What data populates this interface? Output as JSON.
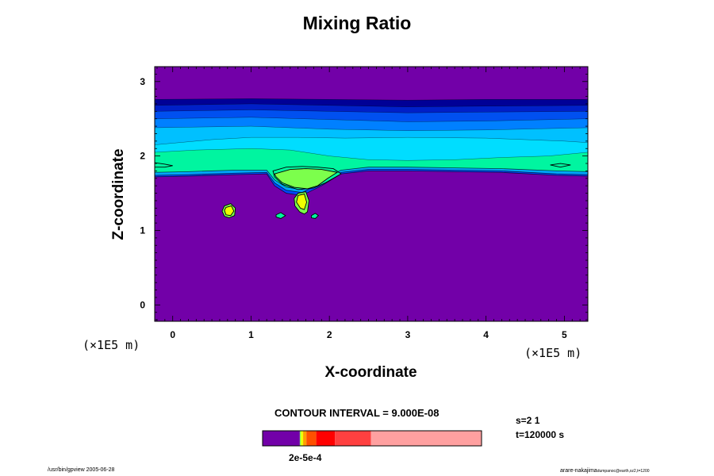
{
  "chart_data": {
    "type": "contour",
    "title": "Mixing Ratio",
    "xlabel": "X-coordinate",
    "ylabel": "Z-coordinate",
    "x_unit": "(×1E5 m)",
    "y_unit": "(×1E5 m)",
    "x_ticks": [
      "0",
      "1",
      "2",
      "3",
      "4",
      "5"
    ],
    "y_ticks": [
      "0",
      "1",
      "2",
      "3"
    ],
    "xlim": [
      -0.23,
      5.3
    ],
    "ylim": [
      -0.22,
      3.2
    ],
    "contour_interval": "CONTOUR INTERVAL = 9.000E-08",
    "colorbar_label": "2e-5e-4",
    "s_label": "s=2 1",
    "t_label": "t=120000 s",
    "bands": [
      {
        "color": "#7200a8",
        "top": [
          [
            -0.23,
            1.72
          ],
          [
            0.2,
            1.73
          ],
          [
            0.8,
            1.75
          ],
          [
            1.2,
            1.76
          ],
          [
            1.3,
            1.6
          ],
          [
            1.45,
            1.5
          ],
          [
            1.65,
            1.47
          ],
          [
            1.9,
            1.6
          ],
          [
            2.15,
            1.76
          ],
          [
            2.5,
            1.8
          ],
          [
            3.0,
            1.8
          ],
          [
            3.6,
            1.79
          ],
          [
            4.2,
            1.78
          ],
          [
            4.9,
            1.74
          ],
          [
            5.3,
            1.73
          ]
        ]
      },
      {
        "color": "#0047ff",
        "top": [
          [
            -0.23,
            1.74
          ],
          [
            0.2,
            1.75
          ],
          [
            0.8,
            1.77
          ],
          [
            1.2,
            1.78
          ],
          [
            1.3,
            1.64
          ],
          [
            1.45,
            1.54
          ],
          [
            1.65,
            1.51
          ],
          [
            1.9,
            1.64
          ],
          [
            2.15,
            1.78
          ],
          [
            2.5,
            1.82
          ],
          [
            3.0,
            1.82
          ],
          [
            3.6,
            1.81
          ],
          [
            4.2,
            1.8
          ],
          [
            4.9,
            1.76
          ],
          [
            5.3,
            1.75
          ]
        ]
      },
      {
        "color": "#00a6ff",
        "top": [
          [
            -0.23,
            1.78
          ],
          [
            0.2,
            1.79
          ],
          [
            0.8,
            1.81
          ],
          [
            1.2,
            1.81
          ],
          [
            1.3,
            1.68
          ],
          [
            1.45,
            1.58
          ],
          [
            1.65,
            1.55
          ],
          [
            1.9,
            1.68
          ],
          [
            2.15,
            1.81
          ],
          [
            2.5,
            1.85
          ],
          [
            3.0,
            1.85
          ],
          [
            3.6,
            1.84
          ],
          [
            4.2,
            1.83
          ],
          [
            4.9,
            1.8
          ],
          [
            5.3,
            1.79
          ]
        ]
      },
      {
        "color": "#00f5a0",
        "top": [
          [
            -0.23,
            2.05
          ],
          [
            0.3,
            2.08
          ],
          [
            1.0,
            2.1
          ],
          [
            1.5,
            2.08
          ],
          [
            2.0,
            2.0
          ],
          [
            2.5,
            1.95
          ],
          [
            3.0,
            1.94
          ],
          [
            3.6,
            1.95
          ],
          [
            4.2,
            1.98
          ],
          [
            4.8,
            2.0
          ],
          [
            5.3,
            2.05
          ]
        ]
      },
      {
        "color": "#00ddff",
        "top": [
          [
            -0.23,
            2.15
          ],
          [
            0.5,
            2.22
          ],
          [
            1.0,
            2.25
          ],
          [
            1.6,
            2.25
          ],
          [
            2.2,
            2.24
          ],
          [
            3.0,
            2.25
          ],
          [
            4.0,
            2.24
          ],
          [
            5.0,
            2.2
          ],
          [
            5.3,
            2.18
          ]
        ]
      },
      {
        "color": "#00c0ff",
        "top": [
          [
            -0.23,
            2.38
          ],
          [
            1.0,
            2.4
          ],
          [
            2.0,
            2.36
          ],
          [
            3.0,
            2.34
          ],
          [
            4.0,
            2.35
          ],
          [
            5.3,
            2.38
          ]
        ]
      },
      {
        "color": "#0080ff",
        "top": [
          [
            -0.23,
            2.5
          ],
          [
            1.0,
            2.52
          ],
          [
            2.0,
            2.49
          ],
          [
            3.0,
            2.46
          ],
          [
            4.0,
            2.47
          ],
          [
            5.3,
            2.5
          ]
        ]
      },
      {
        "color": "#0050f0",
        "top": [
          [
            -0.23,
            2.6
          ],
          [
            1.0,
            2.62
          ],
          [
            2.0,
            2.6
          ],
          [
            3.0,
            2.58
          ],
          [
            4.0,
            2.59
          ],
          [
            5.3,
            2.6
          ]
        ]
      },
      {
        "color": "#0020c8",
        "top": [
          [
            -0.23,
            2.68
          ],
          [
            1.0,
            2.7
          ],
          [
            2.0,
            2.68
          ],
          [
            3.0,
            2.66
          ],
          [
            4.0,
            2.67
          ],
          [
            5.3,
            2.68
          ]
        ]
      },
      {
        "color": "#000096",
        "top": [
          [
            -0.23,
            2.76
          ],
          [
            1.0,
            2.77
          ],
          [
            2.0,
            2.76
          ],
          [
            3.0,
            2.75
          ],
          [
            4.0,
            2.76
          ],
          [
            5.3,
            2.76
          ]
        ]
      },
      {
        "color": "#7200a8",
        "top": [
          [
            -0.23,
            3.2
          ],
          [
            5.3,
            3.2
          ]
        ]
      }
    ],
    "features": [
      {
        "color": "#00f5a0",
        "points": [
          [
            1.28,
            1.8
          ],
          [
            1.45,
            1.85
          ],
          [
            1.65,
            1.86
          ],
          [
            1.85,
            1.85
          ],
          [
            2.05,
            1.83
          ],
          [
            2.15,
            1.76
          ],
          [
            1.95,
            1.64
          ],
          [
            1.8,
            1.57
          ],
          [
            1.6,
            1.55
          ],
          [
            1.4,
            1.62
          ],
          [
            1.3,
            1.72
          ]
        ]
      },
      {
        "color": "#7cff4c",
        "points": [
          [
            1.3,
            1.76
          ],
          [
            1.5,
            1.82
          ],
          [
            1.7,
            1.83
          ],
          [
            1.9,
            1.82
          ],
          [
            2.1,
            1.78
          ],
          [
            1.98,
            1.7
          ],
          [
            1.85,
            1.6
          ],
          [
            1.72,
            1.56
          ],
          [
            1.55,
            1.58
          ],
          [
            1.4,
            1.64
          ],
          [
            1.32,
            1.72
          ]
        ]
      },
      {
        "color": "#7cff4c",
        "points": [
          [
            1.6,
            1.5
          ],
          [
            1.7,
            1.52
          ],
          [
            1.74,
            1.4
          ],
          [
            1.72,
            1.25
          ],
          [
            1.68,
            1.22
          ],
          [
            1.62,
            1.25
          ],
          [
            1.56,
            1.33
          ],
          [
            1.55,
            1.43
          ]
        ]
      },
      {
        "color": "#f0ff00",
        "points": [
          [
            1.6,
            1.47
          ],
          [
            1.68,
            1.49
          ],
          [
            1.71,
            1.38
          ],
          [
            1.68,
            1.28
          ],
          [
            1.63,
            1.3
          ],
          [
            1.58,
            1.38
          ]
        ]
      },
      {
        "color": "#7cff4c",
        "points": [
          [
            0.66,
            1.33
          ],
          [
            0.74,
            1.36
          ],
          [
            0.8,
            1.3
          ],
          [
            0.79,
            1.2
          ],
          [
            0.72,
            1.17
          ],
          [
            0.66,
            1.19
          ],
          [
            0.63,
            1.26
          ]
        ]
      },
      {
        "color": "#f0ff00",
        "points": [
          [
            0.68,
            1.31
          ],
          [
            0.75,
            1.33
          ],
          [
            0.78,
            1.26
          ],
          [
            0.74,
            1.2
          ],
          [
            0.68,
            1.21
          ],
          [
            0.66,
            1.27
          ]
        ]
      },
      {
        "color": "#00f5a0",
        "points": [
          [
            1.32,
            1.21
          ],
          [
            1.38,
            1.24
          ],
          [
            1.44,
            1.2
          ],
          [
            1.38,
            1.16
          ],
          [
            1.32,
            1.18
          ]
        ]
      },
      {
        "color": "#00f5a0",
        "points": [
          [
            1.77,
            1.2
          ],
          [
            1.82,
            1.23
          ],
          [
            1.86,
            1.2
          ],
          [
            1.82,
            1.16
          ],
          [
            1.77,
            1.17
          ]
        ]
      },
      {
        "color": "#00f5a0",
        "points": [
          [
            4.82,
            1.88
          ],
          [
            4.95,
            1.9
          ],
          [
            5.08,
            1.88
          ],
          [
            4.95,
            1.85
          ]
        ]
      },
      {
        "color": "#00f5a0",
        "points": [
          [
            -0.23,
            1.91
          ],
          [
            -0.1,
            1.89
          ],
          [
            0.0,
            1.87
          ],
          [
            -0.1,
            1.85
          ],
          [
            -0.23,
            1.85
          ]
        ]
      }
    ],
    "colorbar": [
      {
        "color": "#7200a8",
        "start": 0.0,
        "end": 0.17
      },
      {
        "color": "#7cff4c",
        "start": 0.17,
        "end": 0.175
      },
      {
        "color": "#f0ff00",
        "start": 0.175,
        "end": 0.185
      },
      {
        "color": "#ffa000",
        "start": 0.185,
        "end": 0.2
      },
      {
        "color": "#ff5000",
        "start": 0.2,
        "end": 0.245
      },
      {
        "color": "#ff0000",
        "start": 0.245,
        "end": 0.33
      },
      {
        "color": "#ff4040",
        "start": 0.33,
        "end": 0.495
      },
      {
        "color": "#ffa0a0",
        "start": 0.495,
        "end": 1.0
      }
    ]
  },
  "footer": {
    "left": "/usr/bin/gpview 2005-06-28",
    "right_main": "arare-nakajima",
    "right_small": "dumpanoc@earth,xz2,t=1200"
  }
}
